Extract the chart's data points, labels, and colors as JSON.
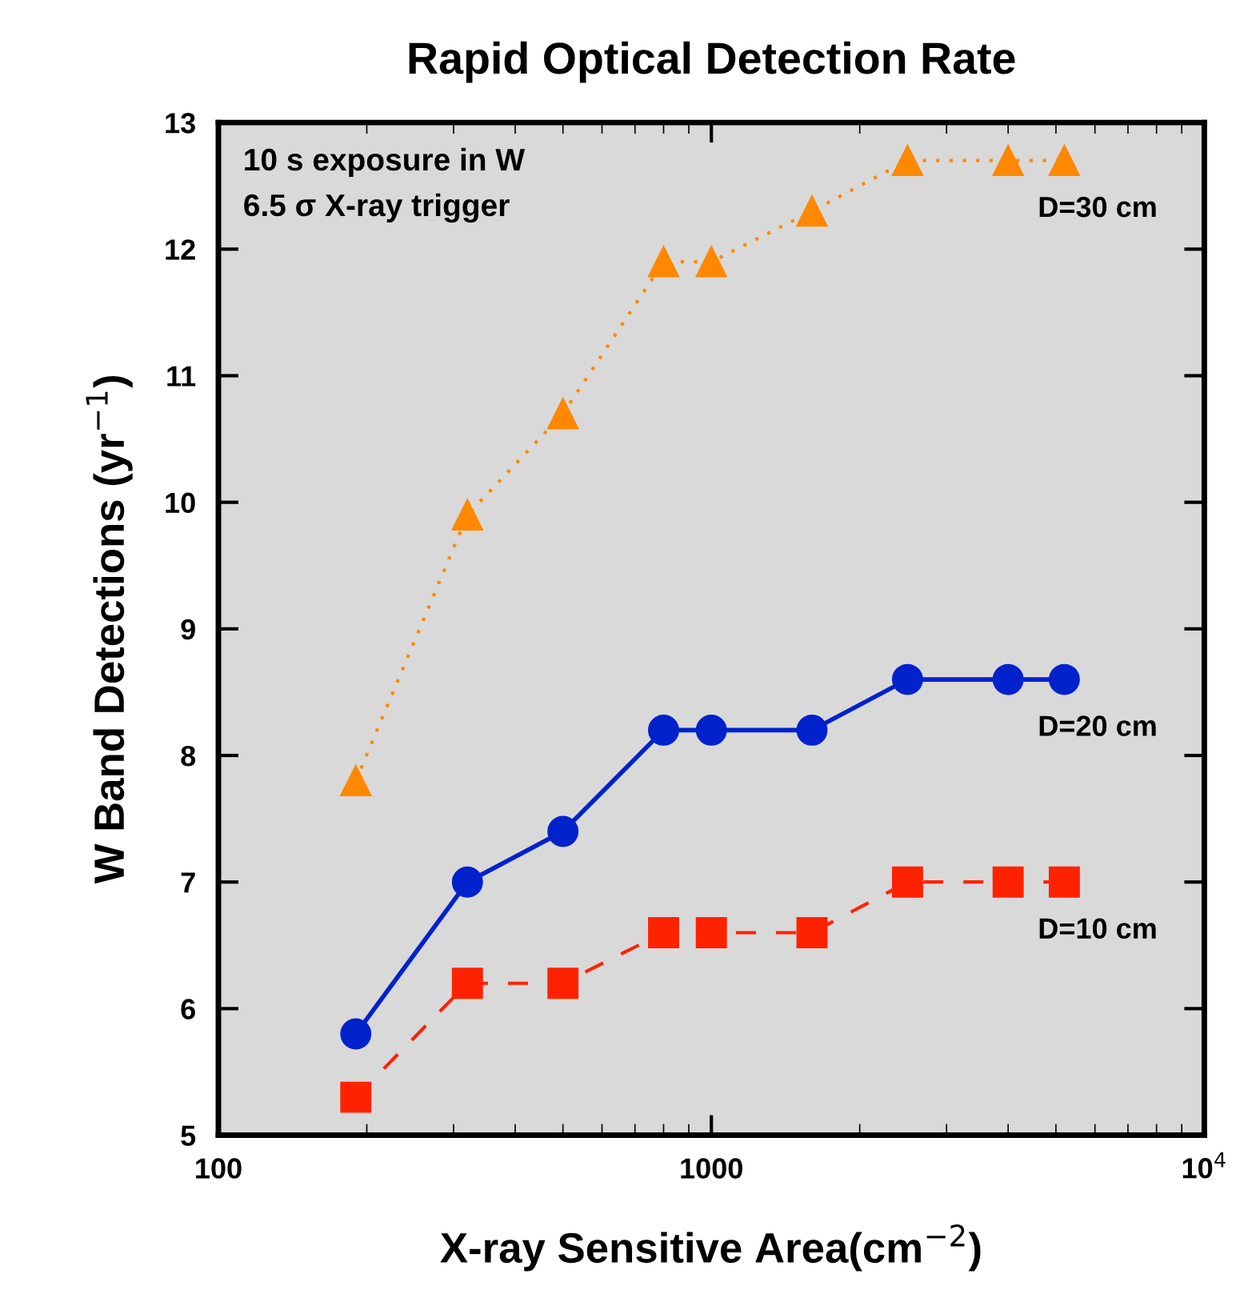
{
  "chart_data": {
    "type": "line",
    "title": "Rapid Optical Detection Rate",
    "xlabel": "X-ray Sensitive Area(cm$^{−2}$)",
    "ylabel": "W Band Detections (yr$^{−1}$)",
    "x": [
      190,
      320,
      500,
      800,
      1000,
      1600,
      2500,
      4000,
      5200
    ],
    "series": [
      {
        "name": "D=30 cm",
        "color": "#ff8800",
        "marker": "triangle",
        "line_style": "dotted",
        "values": [
          7.8,
          9.9,
          10.7,
          11.9,
          11.9,
          12.3,
          12.7,
          12.7,
          12.7
        ]
      },
      {
        "name": "D=20 cm",
        "color": "#0022cc",
        "marker": "circle",
        "line_style": "solid",
        "values": [
          5.8,
          7.0,
          7.4,
          8.2,
          8.2,
          8.2,
          8.6,
          8.6,
          8.6
        ]
      },
      {
        "name": "D=10 cm",
        "color": "#ff2200",
        "marker": "square",
        "line_style": "dashed",
        "values": [
          5.3,
          6.2,
          6.2,
          6.6,
          6.6,
          6.6,
          7.0,
          7.0,
          7.0
        ]
      }
    ],
    "log": "x",
    "xlim": [
      100,
      10000
    ],
    "xticks": [
      100,
      1000,
      {
        "value": 10000,
        "label": "10$^{4}$"
      }
    ],
    "ylim": [
      5,
      13
    ],
    "yticks": [
      5,
      6,
      7,
      8,
      9,
      10,
      11,
      12,
      13
    ],
    "grid": false,
    "legend": false,
    "annotations": [
      "10 s exposure in W",
      "6.5 σ X-ray trigger"
    ]
  }
}
